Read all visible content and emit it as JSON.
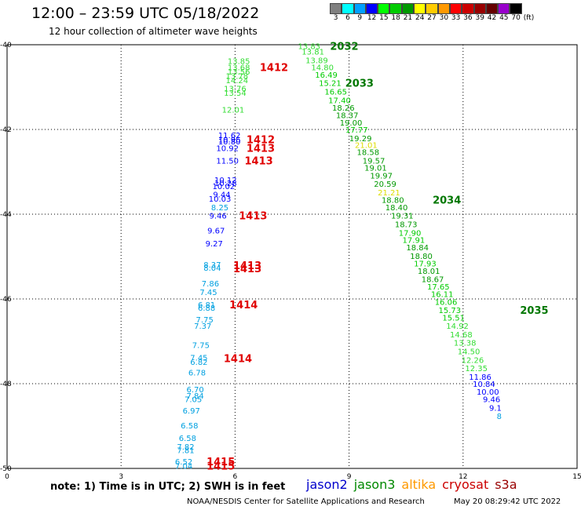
{
  "header": {
    "title": "12:00 – 23:59 UTC 05/18/2022",
    "subtitle": "12 hour collection of altimeter wave heights"
  },
  "legend": {
    "unit": "(ft)",
    "bins": [
      {
        "label": "3",
        "color": "#808080"
      },
      {
        "label": "6",
        "color": "#00ffff"
      },
      {
        "label": "9",
        "color": "#00a0ff"
      },
      {
        "label": "12",
        "color": "#0000ff"
      },
      {
        "label": "15",
        "color": "#00ff00"
      },
      {
        "label": "18",
        "color": "#00cc00"
      },
      {
        "label": "21",
        "color": "#009900"
      },
      {
        "label": "24",
        "color": "#ffff00"
      },
      {
        "label": "27",
        "color": "#ffcc00"
      },
      {
        "label": "30",
        "color": "#ff9900"
      },
      {
        "label": "33",
        "color": "#ff0000"
      },
      {
        "label": "36",
        "color": "#cc0000"
      },
      {
        "label": "39",
        "color": "#990000"
      },
      {
        "label": "42",
        "color": "#660000"
      },
      {
        "label": "45",
        "color": "#9900cc"
      },
      {
        "label": "70",
        "color": "#000000"
      }
    ]
  },
  "footer": {
    "note": "note: 1) Time is in UTC; 2) SWH is in feet",
    "credit": "NOAA/NESDIS Center for Satellite Applications and Research",
    "generated": "May 20 08:29:42 UTC 2022"
  },
  "satellites": [
    {
      "name": "jason2",
      "color": "#0000cc"
    },
    {
      "name": "jason3",
      "color": "#008800"
    },
    {
      "name": "altika",
      "color": "#ff9900"
    },
    {
      "name": "cryosat",
      "color": "#cc0000"
    },
    {
      "name": "s3a",
      "color": "#990000"
    }
  ],
  "chart_data": {
    "type": "scatter",
    "xlim": [
      0,
      15
    ],
    "ylim": [
      -50,
      -40
    ],
    "x_ticks": [
      "0",
      "3",
      "6",
      "9",
      "12",
      "15"
    ],
    "y_ticks": [
      "-40",
      "-42",
      "-44",
      "-46",
      "-48",
      "-50"
    ],
    "grid": true,
    "series": [
      {
        "name": "s3a",
        "color_by_value": true,
        "points": [
          {
            "x": 6.1,
            "y": -40.4,
            "v": "13.85"
          },
          {
            "x": 6.1,
            "y": -40.55,
            "v": "13.68"
          },
          {
            "x": 6.1,
            "y": -40.65,
            "v": "13.56"
          },
          {
            "x": 6.05,
            "y": -40.75,
            "v": "13.78"
          },
          {
            "x": 6.05,
            "y": -40.85,
            "v": "14.24"
          },
          {
            "x": 6.0,
            "y": -41.05,
            "v": "13.76"
          },
          {
            "x": 6.0,
            "y": -41.15,
            "v": "13.54"
          },
          {
            "x": 5.95,
            "y": -41.55,
            "v": "12.01"
          },
          {
            "x": 5.85,
            "y": -42.15,
            "v": "11.62"
          },
          {
            "x": 5.85,
            "y": -42.25,
            "v": "10.96"
          },
          {
            "x": 5.85,
            "y": -42.3,
            "v": "10.80"
          },
          {
            "x": 5.8,
            "y": -42.45,
            "v": "10.92"
          },
          {
            "x": 5.8,
            "y": -42.75,
            "v": "11.50"
          },
          {
            "x": 5.75,
            "y": -43.2,
            "v": "10.12"
          },
          {
            "x": 5.75,
            "y": -43.28,
            "v": "10.28"
          },
          {
            "x": 5.7,
            "y": -43.35,
            "v": "10.02"
          },
          {
            "x": 5.65,
            "y": -43.55,
            "v": "9.44"
          },
          {
            "x": 5.6,
            "y": -43.65,
            "v": "10.03"
          },
          {
            "x": 5.6,
            "y": -43.85,
            "v": "8.25"
          },
          {
            "x": 5.55,
            "y": -44.05,
            "v": "9.46"
          },
          {
            "x": 5.5,
            "y": -44.4,
            "v": "9.67"
          },
          {
            "x": 5.45,
            "y": -44.7,
            "v": "9.27"
          },
          {
            "x": 5.4,
            "y": -45.2,
            "v": "8.37"
          },
          {
            "x": 5.4,
            "y": -45.28,
            "v": "8.04"
          },
          {
            "x": 5.35,
            "y": -45.65,
            "v": "7.86"
          },
          {
            "x": 5.3,
            "y": -45.85,
            "v": "7.45"
          },
          {
            "x": 5.25,
            "y": -46.15,
            "v": "6.81"
          },
          {
            "x": 5.25,
            "y": -46.22,
            "v": "6.88"
          },
          {
            "x": 5.2,
            "y": -46.5,
            "v": "7.75"
          },
          {
            "x": 5.15,
            "y": -46.65,
            "v": "7.37"
          },
          {
            "x": 5.1,
            "y": -47.1,
            "v": "7.75"
          },
          {
            "x": 5.05,
            "y": -47.4,
            "v": "7.45"
          },
          {
            "x": 5.05,
            "y": -47.5,
            "v": "6.82"
          },
          {
            "x": 5.0,
            "y": -47.75,
            "v": "6.78"
          },
          {
            "x": 4.95,
            "y": -48.15,
            "v": "6.70"
          },
          {
            "x": 4.95,
            "y": -48.3,
            "v": "7.84"
          },
          {
            "x": 4.9,
            "y": -48.38,
            "v": "7.05"
          },
          {
            "x": 4.85,
            "y": -48.65,
            "v": "6.97"
          },
          {
            "x": 4.8,
            "y": -49.0,
            "v": "6.58"
          },
          {
            "x": 4.75,
            "y": -49.3,
            "v": "6.58"
          },
          {
            "x": 4.7,
            "y": -49.5,
            "v": "7.82"
          },
          {
            "x": 4.7,
            "y": -49.58,
            "v": "7.81"
          },
          {
            "x": 4.65,
            "y": -49.85,
            "v": "6.52"
          },
          {
            "x": 4.65,
            "y": -49.95,
            "v": "7.04"
          }
        ]
      },
      {
        "name": "jason3",
        "color_by_value": true,
        "points": [
          {
            "x": 7.95,
            "y": -40.05,
            "v": "13.83"
          },
          {
            "x": 8.05,
            "y": -40.18,
            "v": "13.81"
          },
          {
            "x": 8.15,
            "y": -40.38,
            "v": "13.89"
          },
          {
            "x": 8.3,
            "y": -40.55,
            "v": "14.80"
          },
          {
            "x": 8.4,
            "y": -40.72,
            "v": "16.49"
          },
          {
            "x": 8.5,
            "y": -40.92,
            "v": "15.21"
          },
          {
            "x": 8.65,
            "y": -41.12,
            "v": "16.65"
          },
          {
            "x": 8.75,
            "y": -41.32,
            "v": "17.40"
          },
          {
            "x": 8.85,
            "y": -41.5,
            "v": "18.26"
          },
          {
            "x": 8.95,
            "y": -41.68,
            "v": "18.37"
          },
          {
            "x": 9.05,
            "y": -41.85,
            "v": "19.00"
          },
          {
            "x": 9.2,
            "y": -42.02,
            "v": "17.77"
          },
          {
            "x": 9.3,
            "y": -42.22,
            "v": "19.29"
          },
          {
            "x": 9.45,
            "y": -42.38,
            "v": "21.01"
          },
          {
            "x": 9.5,
            "y": -42.55,
            "v": "18.58"
          },
          {
            "x": 9.65,
            "y": -42.75,
            "v": "19.57"
          },
          {
            "x": 9.7,
            "y": -42.92,
            "v": "19.01"
          },
          {
            "x": 9.85,
            "y": -43.1,
            "v": "19.97"
          },
          {
            "x": 9.95,
            "y": -43.3,
            "v": "20.59"
          },
          {
            "x": 10.05,
            "y": -43.5,
            "v": "21.21"
          },
          {
            "x": 10.15,
            "y": -43.68,
            "v": "18.80"
          },
          {
            "x": 10.25,
            "y": -43.85,
            "v": "18.40"
          },
          {
            "x": 10.4,
            "y": -44.05,
            "v": "19.31"
          },
          {
            "x": 10.5,
            "y": -44.25,
            "v": "18.73"
          },
          {
            "x": 10.6,
            "y": -44.45,
            "v": "17.90"
          },
          {
            "x": 10.7,
            "y": -44.62,
            "v": "17.91"
          },
          {
            "x": 10.8,
            "y": -44.8,
            "v": "18.84"
          },
          {
            "x": 10.9,
            "y": -45.0,
            "v": "18.80"
          },
          {
            "x": 11.0,
            "y": -45.18,
            "v": "17.93"
          },
          {
            "x": 11.1,
            "y": -45.35,
            "v": "18.01"
          },
          {
            "x": 11.2,
            "y": -45.55,
            "v": "18.67"
          },
          {
            "x": 11.35,
            "y": -45.72,
            "v": "17.65"
          },
          {
            "x": 11.45,
            "y": -45.9,
            "v": "16.11"
          },
          {
            "x": 11.55,
            "y": -46.08,
            "v": "16.06"
          },
          {
            "x": 11.65,
            "y": -46.28,
            "v": "15.73"
          },
          {
            "x": 11.75,
            "y": -46.45,
            "v": "15.51"
          },
          {
            "x": 11.85,
            "y": -46.65,
            "v": "14.92"
          },
          {
            "x": 11.95,
            "y": -46.85,
            "v": "14.68"
          },
          {
            "x": 12.05,
            "y": -47.05,
            "v": "13.38"
          },
          {
            "x": 12.15,
            "y": -47.25,
            "v": "14.50"
          },
          {
            "x": 12.25,
            "y": -47.45,
            "v": "12.26"
          },
          {
            "x": 12.35,
            "y": -47.65,
            "v": "12.35"
          },
          {
            "x": 12.45,
            "y": -47.85,
            "v": "11.86"
          },
          {
            "x": 12.55,
            "y": -48.02,
            "v": "10.84"
          },
          {
            "x": 12.65,
            "y": -48.2,
            "v": "10.00"
          },
          {
            "x": 12.75,
            "y": -48.38,
            "v": "9.46"
          },
          {
            "x": 12.85,
            "y": -48.58,
            "v": "9.1"
          },
          {
            "x": 12.95,
            "y": -48.78,
            "v": "8"
          }
        ]
      }
    ],
    "annotations": [
      {
        "x": 6.65,
        "y": -40.55,
        "label": "1412",
        "color": "#e00000"
      },
      {
        "x": 6.3,
        "y": -42.25,
        "label": "1412",
        "color": "#e00000"
      },
      {
        "x": 6.3,
        "y": -42.45,
        "label": "1413",
        "color": "#e00000"
      },
      {
        "x": 6.25,
        "y": -42.75,
        "label": "1413",
        "color": "#e00000"
      },
      {
        "x": 6.1,
        "y": -44.05,
        "label": "1413",
        "color": "#e00000"
      },
      {
        "x": 5.95,
        "y": -45.22,
        "label": "1413",
        "color": "#e00000"
      },
      {
        "x": 5.95,
        "y": -45.3,
        "label": "1413",
        "color": "#e00000"
      },
      {
        "x": 5.85,
        "y": -46.15,
        "label": "1414",
        "color": "#e00000"
      },
      {
        "x": 5.7,
        "y": -47.42,
        "label": "1414",
        "color": "#e00000"
      },
      {
        "x": 5.25,
        "y": -49.85,
        "label": "1415",
        "color": "#e00000"
      },
      {
        "x": 5.25,
        "y": -49.95,
        "label": "1415",
        "color": "#e00000"
      },
      {
        "x": 8.5,
        "y": -40.05,
        "label": "2032",
        "color": "#007700"
      },
      {
        "x": 8.9,
        "y": -40.92,
        "label": "2033",
        "color": "#007700"
      },
      {
        "x": 11.2,
        "y": -43.68,
        "label": "2034",
        "color": "#007700"
      },
      {
        "x": 13.5,
        "y": -46.28,
        "label": "2035",
        "color": "#007700"
      }
    ]
  }
}
